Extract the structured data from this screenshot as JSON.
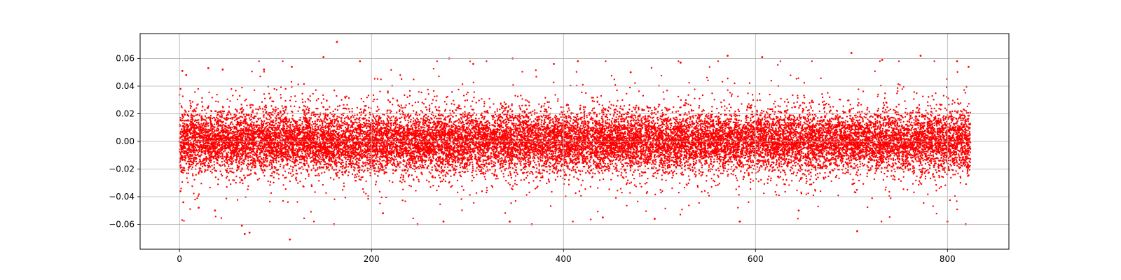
{
  "chart_data": {
    "type": "scatter",
    "title": "",
    "xlabel": "",
    "ylabel": "",
    "xlim": [
      -41,
      864
    ],
    "ylim": [
      -0.078,
      0.078
    ],
    "x_ticks": [
      0,
      200,
      400,
      600,
      800
    ],
    "x_tick_labels": [
      "0",
      "200",
      "400",
      "600",
      "800"
    ],
    "y_ticks": [
      -0.06,
      -0.04,
      -0.02,
      0.0,
      0.02,
      0.04,
      0.06
    ],
    "y_tick_labels": [
      "−0.06",
      "−0.04",
      "−0.02",
      "0.00",
      "0.02",
      "0.04",
      "0.06"
    ],
    "grid": true,
    "legend": "none",
    "marker_color": "#ff0000",
    "series": [
      {
        "x_range": [
          0,
          824
        ],
        "distribution": "dense noise centred on 0.00; bulk within about ±0.015, tails reaching about ±0.06",
        "points": [
          [
            0,
            0.0
          ],
          [
            1,
            0.038
          ],
          [
            1,
            -0.036
          ],
          [
            3,
            0.051
          ],
          [
            4,
            -0.044
          ],
          [
            7,
            0.048
          ],
          [
            20,
            -0.048
          ],
          [
            30,
            0.053
          ],
          [
            37,
            -0.05
          ],
          [
            45,
            0.052
          ],
          [
            65,
            -0.061
          ],
          [
            68,
            -0.067
          ],
          [
            73,
            -0.066
          ],
          [
            88,
            0.052
          ],
          [
            115,
            -0.071
          ],
          [
            117,
            0.054
          ],
          [
            150,
            0.061
          ],
          [
            161,
            -0.06
          ],
          [
            164,
            0.072
          ],
          [
            188,
            0.058
          ],
          [
            212,
            -0.052
          ],
          [
            248,
            -0.06
          ],
          [
            275,
            -0.058
          ],
          [
            281,
            0.06
          ],
          [
            306,
            0.056
          ],
          [
            344,
            -0.058
          ],
          [
            347,
            0.06
          ],
          [
            367,
            -0.06
          ],
          [
            390,
            0.056
          ],
          [
            415,
            0.058
          ],
          [
            441,
            -0.055
          ],
          [
            470,
            0.05
          ],
          [
            495,
            -0.056
          ],
          [
            522,
            0.057
          ],
          [
            571,
            0.062
          ],
          [
            607,
            0.061
          ],
          [
            645,
            -0.05
          ],
          [
            700,
            0.064
          ],
          [
            706,
            -0.065
          ],
          [
            732,
            0.059
          ],
          [
            772,
            0.062
          ],
          [
            800,
            -0.058
          ],
          [
            810,
            0.058
          ],
          [
            819,
            -0.06
          ],
          [
            822,
            0.054
          ]
        ]
      }
    ]
  }
}
